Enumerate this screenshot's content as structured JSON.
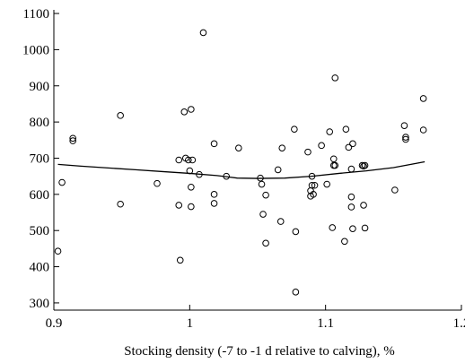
{
  "chart_data": {
    "type": "scatter",
    "title": "",
    "xlabel": "Stocking density (-7 to -1 d relative to calving), %",
    "ylabel": "",
    "xlim": [
      0.9,
      1.2
    ],
    "ylim": [
      280,
      1110
    ],
    "x_ticks": [
      0.9,
      1.0,
      1.1,
      1.2
    ],
    "x_tick_labels": [
      "0.9",
      "1",
      "1.1",
      "1.2"
    ],
    "y_ticks": [
      300,
      400,
      500,
      600,
      700,
      800,
      900,
      1000,
      1100
    ],
    "y_tick_labels": [
      "300",
      "400",
      "500",
      "600",
      "700",
      "800",
      "900",
      "1000",
      "1100"
    ],
    "grid": false,
    "legend": "none",
    "colors": {
      "marker": "#000000",
      "line": "#000000",
      "axis": "#000000"
    },
    "series": [
      {
        "kind": "scatter",
        "marker": "open-circle",
        "x": [
          0.903,
          0.906,
          0.914,
          0.914,
          0.949,
          0.949,
          0.976,
          0.992,
          0.992,
          0.993,
          0.996,
          0.997,
          0.999,
          1.0,
          1.001,
          1.001,
          1.001,
          1.002,
          1.007,
          1.01,
          1.018,
          1.018,
          1.018,
          1.027,
          1.036,
          1.052,
          1.053,
          1.054,
          1.056,
          1.056,
          1.065,
          1.067,
          1.068,
          1.077,
          1.078,
          1.078,
          1.087,
          1.089,
          1.089,
          1.09,
          1.09,
          1.091,
          1.092,
          1.097,
          1.101,
          1.103,
          1.105,
          1.106,
          1.106,
          1.107,
          1.107,
          1.114,
          1.115,
          1.117,
          1.119,
          1.119,
          1.119,
          1.12,
          1.12,
          1.127,
          1.128,
          1.128,
          1.129,
          1.129,
          1.151,
          1.158,
          1.159,
          1.159,
          1.172,
          1.172
        ],
        "y": [
          443,
          633,
          755,
          748,
          818,
          573,
          630,
          695,
          570,
          418,
          828,
          700,
          695,
          665,
          620,
          566,
          835,
          695,
          655,
          1047,
          600,
          575,
          740,
          650,
          728,
          645,
          628,
          545,
          598,
          465,
          668,
          525,
          728,
          780,
          497,
          330,
          717,
          610,
          595,
          625,
          650,
          600,
          625,
          735,
          628,
          773,
          508,
          680,
          698,
          680,
          922,
          470,
          780,
          730,
          670,
          593,
          565,
          505,
          740,
          680,
          678,
          570,
          507,
          680,
          612,
          790,
          758,
          752,
          865,
          778
        ]
      },
      {
        "kind": "line",
        "style": "smooth-fit",
        "x": [
          0.903,
          0.92,
          0.94,
          0.96,
          0.98,
          1.0,
          1.02,
          1.035,
          1.05,
          1.07,
          1.09,
          1.11,
          1.13,
          1.15,
          1.173
        ],
        "y": [
          683,
          678,
          673,
          668,
          663,
          658,
          652,
          645,
          644,
          645,
          650,
          658,
          665,
          674,
          690
        ]
      }
    ]
  }
}
